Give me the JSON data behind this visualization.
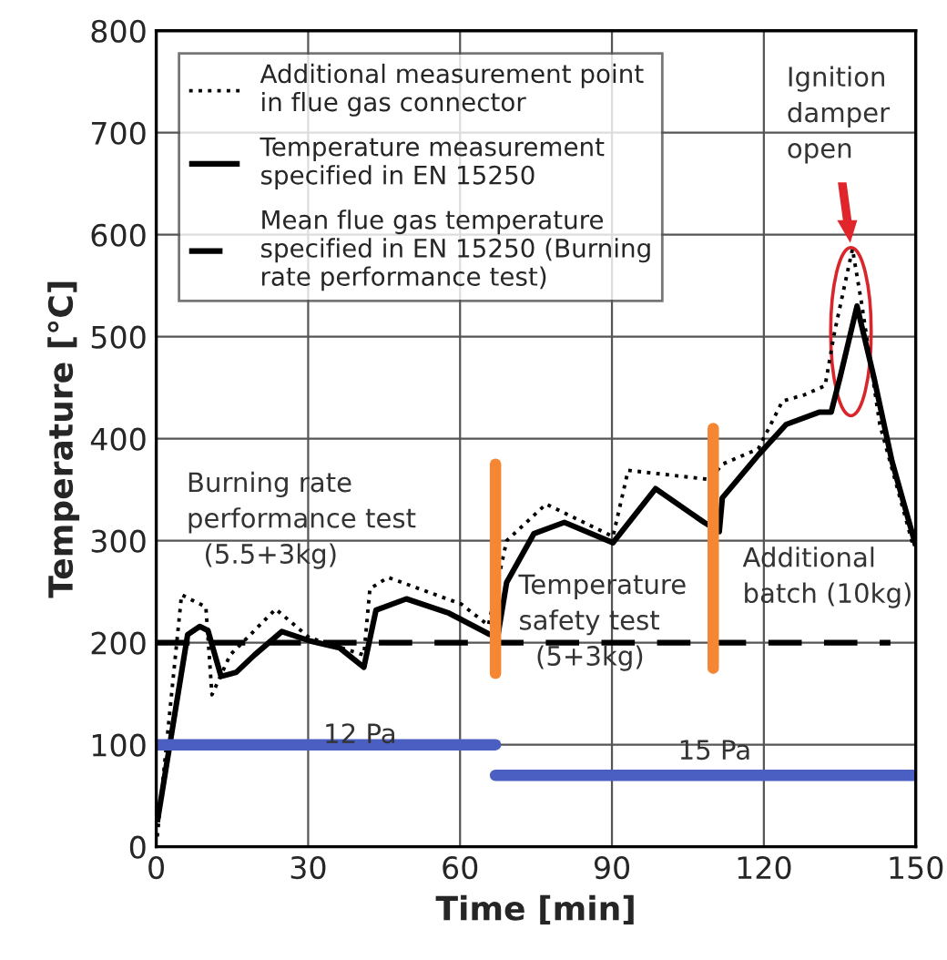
{
  "chart_data": {
    "type": "line",
    "xlabel": "Time [min]",
    "ylabel": "Temperature [°C]",
    "xlim": [
      0,
      150
    ],
    "ylim": [
      0,
      800
    ],
    "xticks": [
      0,
      30,
      60,
      90,
      120,
      150
    ],
    "yticks": [
      0,
      100,
      200,
      300,
      400,
      500,
      600,
      700,
      800
    ],
    "grid": true,
    "legend": "top left",
    "series": [
      {
        "name": "Additional measurement point\nin flue gas connector",
        "color": "#000000",
        "line_style": "dotted",
        "x": [
          0.2,
          5,
          9.8,
          11,
          14.6,
          23.6,
          30.2,
          41,
          42.2,
          45.8,
          60.2,
          65.6,
          69.2,
          77,
          90.2,
          93.2,
          98.6,
          109.4,
          111.8,
          118.9,
          123.7,
          128,
          132.1,
          133.9,
          137.5,
          139.3,
          142.9,
          149.5
        ],
        "values": [
          10,
          247,
          235,
          149,
          188,
          233,
          205,
          188,
          253,
          264,
          238,
          217,
          300,
          336,
          304,
          369,
          366,
          360,
          375,
          390,
          437,
          443,
          452,
          503,
          586,
          533,
          414,
          295
        ]
      },
      {
        "name": "Temperature measurement\nspecified in EN 15250",
        "color": "#000000",
        "line_style": "solid",
        "x": [
          0.2,
          6.2,
          8.6,
          10.2,
          12.8,
          15.8,
          19.4,
          24.8,
          30.2,
          36.2,
          41,
          43.4,
          49.4,
          57.8,
          65.5,
          67.4,
          69.2,
          74.6,
          80.6,
          90.2,
          98.6,
          108.2,
          111.2,
          111.8,
          118.9,
          124.4,
          130.9,
          133.3,
          135.1,
          138.4,
          141.7,
          145.3,
          150
        ],
        "values": [
          24,
          208,
          216,
          212,
          167,
          171,
          188,
          211,
          202,
          195,
          176,
          232,
          243,
          229,
          209,
          205,
          259,
          307,
          318,
          298,
          351,
          318,
          309,
          342,
          384,
          414,
          426,
          426,
          461,
          530,
          461,
          378,
          295
        ]
      },
      {
        "name": "Mean flue gas temperature\nspecified in EN 15250 (Burning\nrate performance test)",
        "color": "#000000",
        "line_style": "dashed",
        "x": [
          0,
          145
        ],
        "values": [
          200,
          200
        ]
      },
      {
        "color": "#4a5fc1",
        "line_style": "solid",
        "x": [
          0,
          67
        ],
        "values": [
          100,
          100
        ]
      },
      {
        "color": "#4a5fc1",
        "line_style": "solid",
        "x": [
          67,
          150
        ],
        "values": [
          70,
          70
        ]
      },
      {
        "color": "#f58634",
        "line_style": "solid",
        "x": [
          67,
          67
        ],
        "values": [
          170,
          375
        ]
      },
      {
        "color": "#f58634",
        "line_style": "solid",
        "x": [
          110,
          110
        ],
        "values": [
          175,
          410
        ]
      }
    ],
    "annotations": [
      "Burning rate\nperformance test\n  (5.5+3kg)",
      "Temperature\nsafety test\n  (5+3kg)",
      "Additional\nbatch (10kg)",
      "Ignition\ndamper\nopen",
      "12 Pa",
      "15 Pa"
    ]
  }
}
